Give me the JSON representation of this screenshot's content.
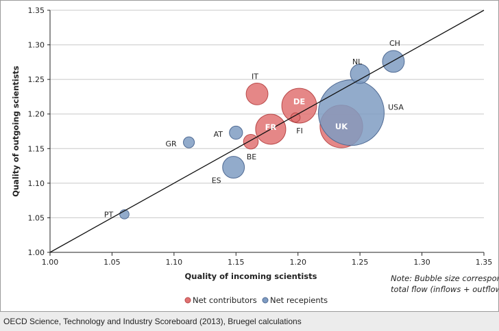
{
  "chart_data": {
    "type": "scatter",
    "subtype": "bubble",
    "xlabel": "Quality of incoming scientists",
    "ylabel": "Quality of outgoing scientists",
    "xlim": [
      1.0,
      1.35
    ],
    "ylim": [
      1.0,
      1.35
    ],
    "xticks": [
      "1.00",
      "1.05",
      "1.10",
      "1.15",
      "1.20",
      "1.25",
      "1.30",
      "1.35"
    ],
    "yticks": [
      "1.00",
      "1.05",
      "1.10",
      "1.15",
      "1.20",
      "1.25",
      "1.30",
      "1.35"
    ],
    "grid": "horizontal",
    "reference_line": "y = x",
    "note_lines": [
      "Note: Bubble size corresponds to the",
      "total flow (inflows + outflows)"
    ],
    "legend": {
      "placement": "bottom",
      "items": [
        {
          "label": "Net contributors",
          "color": "#e07272"
        },
        {
          "label": "Net recepients",
          "color": "#7f9cc2"
        }
      ]
    },
    "colors": {
      "Net contributors": "#e07272",
      "Net recepients": "#7f9cc2",
      "contributors_stroke": "#b84848",
      "recepients_stroke": "#4f6a93"
    },
    "points": [
      {
        "label": "UK",
        "x": 1.235,
        "y": 1.182,
        "size": 42,
        "group": "Net contributors"
      },
      {
        "label": "USA",
        "x": 1.243,
        "y": 1.202,
        "size": 100,
        "group": "Net recepients"
      },
      {
        "label": "CH",
        "x": 1.277,
        "y": 1.276,
        "size": 11,
        "group": "Net recepients"
      },
      {
        "label": "NL",
        "x": 1.25,
        "y": 1.258,
        "size": 8.5,
        "group": "Net recepients"
      },
      {
        "label": "IT",
        "x": 1.167,
        "y": 1.229,
        "size": 11,
        "group": "Net contributors"
      },
      {
        "label": "DE",
        "x": 1.201,
        "y": 1.212,
        "size": 28,
        "group": "Net contributors"
      },
      {
        "label": "FR",
        "x": 1.178,
        "y": 1.178,
        "size": 21,
        "group": "Net contributors"
      },
      {
        "label": "FI",
        "x": 1.198,
        "y": 1.195,
        "size": 2,
        "group": "Net contributors"
      },
      {
        "label": "AT",
        "x": 1.15,
        "y": 1.173,
        "size": 4,
        "group": "Net recepients"
      },
      {
        "label": "GR",
        "x": 1.112,
        "y": 1.159,
        "size": 2.8,
        "group": "Net recepients"
      },
      {
        "label": "BE",
        "x": 1.162,
        "y": 1.16,
        "size": 5,
        "group": "Net contributors"
      },
      {
        "label": "ES",
        "x": 1.148,
        "y": 1.123,
        "size": 11,
        "group": "Net recepients"
      },
      {
        "label": "PT",
        "x": 1.06,
        "y": 1.055,
        "size": 2,
        "group": "Net recepients"
      }
    ]
  },
  "footer": {
    "source": "OECD Science, Technology and Industry Scoreboard (2013), Bruegel calculations"
  }
}
